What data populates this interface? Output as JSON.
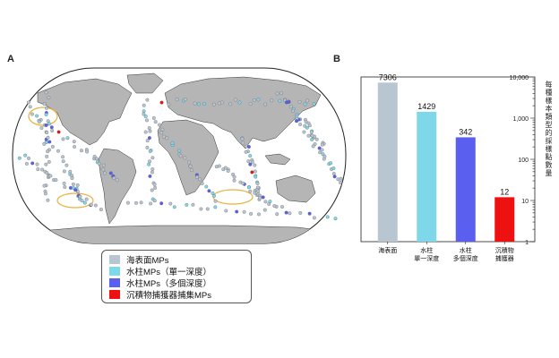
{
  "panel_a_label": "A",
  "panel_b_label": "B",
  "colors": {
    "ocean": "#ffffff",
    "land": "#b5b5b5",
    "sea_surface": "#b8c6d2",
    "water_single": "#7fd8ea",
    "water_multi": "#5a5ff0",
    "sediment": "#ee1111",
    "garbage_patch": "#e8b23a"
  },
  "legend": {
    "items": [
      {
        "label": "海表面MPs",
        "color": "#b8c6d2"
      },
      {
        "label": "水柱MPs（單一深度）",
        "color": "#7fd8ea"
      },
      {
        "label": "水柱MPs（多個深度）",
        "color": "#5a5ff0"
      },
      {
        "label": "沉積物捕獲器捕集MPs",
        "color": "#ee1111"
      }
    ]
  },
  "chart_data": {
    "type": "bar",
    "title": "",
    "ylabel": "每種樣本類型的採樣點數量",
    "yscale": "log",
    "ylim": [
      1,
      10000
    ],
    "yticks": [
      "1",
      "10",
      "100",
      "1,000",
      "10,000"
    ],
    "categories": [
      {
        "line1": "海表面",
        "line2": ""
      },
      {
        "line1": "水柱",
        "line2": "單一深度"
      },
      {
        "line1": "水柱",
        "line2": "多個深度"
      },
      {
        "line1": "沉積物",
        "line2": "捕獲器"
      }
    ],
    "values": [
      7306,
      1429,
      342,
      12
    ],
    "value_labels": [
      "7306",
      "1429",
      "342",
      "12"
    ],
    "bar_colors": [
      "#b8c6d2",
      "#7fd8ea",
      "#5a5ff0",
      "#ee1111"
    ]
  }
}
